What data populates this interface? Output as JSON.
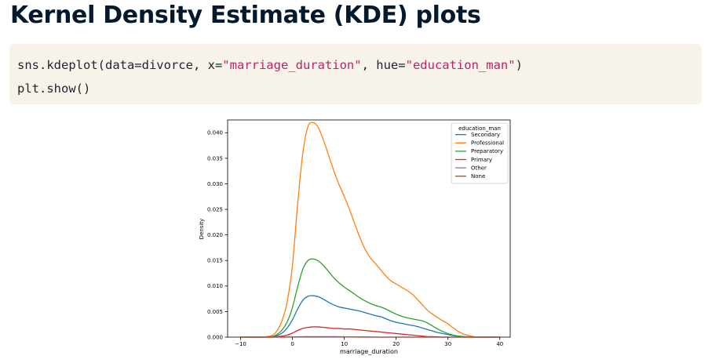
{
  "slide": {
    "title": "Kernel Density Estimate (KDE) plots"
  },
  "code": {
    "line1": {
      "p1": "sns.kdeplot(data=divorce, x=",
      "s1": "\"marriage_duration\"",
      "p2": ", hue=",
      "s2": "\"education_man\"",
      "p3": ")"
    },
    "line2": "plt.show()"
  },
  "colors": {
    "code_bg": "#f7f3eb",
    "string": "#b92762",
    "title": "#05192d"
  },
  "chart_data": {
    "type": "line",
    "xlabel": "marriage_duration",
    "ylabel": "Density",
    "xlim": [
      -12.5,
      42
    ],
    "ylim": [
      0,
      0.0425
    ],
    "xticks": [
      -10,
      0,
      10,
      20,
      30,
      40
    ],
    "yticks": [
      0.0,
      0.005,
      0.01,
      0.015,
      0.02,
      0.025,
      0.03,
      0.035,
      0.04
    ],
    "ytick_labels": [
      "0.000",
      "0.005",
      "0.010",
      "0.015",
      "0.020",
      "0.025",
      "0.030",
      "0.035",
      "0.040"
    ],
    "grid": false,
    "legend_title": "education_man",
    "legend_placement": "upper-right",
    "x": [
      -10,
      -6,
      -4,
      -3,
      -2,
      -1,
      0,
      1,
      2,
      3,
      4,
      5,
      6,
      7,
      8,
      9,
      10,
      11,
      12,
      13,
      14,
      15,
      16,
      17,
      18,
      19,
      20,
      21,
      22,
      23,
      24,
      25,
      26,
      27,
      28,
      29,
      30,
      31,
      32,
      33,
      34,
      35,
      36,
      38,
      40
    ],
    "series": [
      {
        "name": "Secondary",
        "color": "#1f77b4",
        "values": [
          0,
          0,
          0.0001,
          0.0003,
          0.0008,
          0.0018,
          0.0034,
          0.0055,
          0.0072,
          0.008,
          0.0081,
          0.0079,
          0.0074,
          0.0068,
          0.0063,
          0.0059,
          0.0057,
          0.0055,
          0.0053,
          0.0051,
          0.0048,
          0.0045,
          0.0042,
          0.004,
          0.0036,
          0.0032,
          0.0029,
          0.0027,
          0.0025,
          0.0023,
          0.0021,
          0.0018,
          0.0015,
          0.0012,
          0.0009,
          0.0007,
          0.0005,
          0.0003,
          0.0002,
          0.0001,
          5e-05,
          0,
          0,
          0,
          0
        ]
      },
      {
        "name": "Professional",
        "color": "#ff7f0e",
        "values": [
          0,
          0,
          0.0003,
          0.0012,
          0.0032,
          0.007,
          0.014,
          0.026,
          0.036,
          0.0412,
          0.042,
          0.041,
          0.0385,
          0.0355,
          0.0325,
          0.0298,
          0.0275,
          0.025,
          0.0222,
          0.0195,
          0.0172,
          0.0156,
          0.0144,
          0.0132,
          0.012,
          0.011,
          0.0104,
          0.0098,
          0.0092,
          0.0085,
          0.0075,
          0.0064,
          0.0053,
          0.0045,
          0.0038,
          0.0032,
          0.0026,
          0.0018,
          0.0011,
          0.0006,
          0.0003,
          0.0001,
          0,
          0,
          0
        ]
      },
      {
        "name": "Preparatory",
        "color": "#2ca02c",
        "values": [
          0,
          0,
          0.0001,
          0.0005,
          0.0014,
          0.003,
          0.0058,
          0.0098,
          0.0133,
          0.015,
          0.0153,
          0.0149,
          0.014,
          0.0128,
          0.0116,
          0.0106,
          0.0098,
          0.0091,
          0.0084,
          0.0077,
          0.0071,
          0.0066,
          0.0062,
          0.0059,
          0.0055,
          0.005,
          0.0045,
          0.0041,
          0.0038,
          0.0036,
          0.0034,
          0.0032,
          0.0028,
          0.0022,
          0.0016,
          0.0011,
          0.0007,
          0.0004,
          0.0002,
          0.0001,
          5e-05,
          0,
          0,
          0,
          0
        ]
      },
      {
        "name": "Primary",
        "color": "#d62728",
        "values": [
          0,
          0,
          0,
          0.0001,
          0.0002,
          0.0004,
          0.0008,
          0.0013,
          0.0017,
          0.0019,
          0.002,
          0.002,
          0.0019,
          0.0018,
          0.0017,
          0.0017,
          0.0016,
          0.0016,
          0.0015,
          0.0014,
          0.0013,
          0.0012,
          0.0011,
          0.001,
          0.0009,
          0.0008,
          0.0007,
          0.0006,
          0.0005,
          0.0004,
          0.0003,
          0.0002,
          0.0001,
          0.0001,
          5e-05,
          0,
          0,
          0,
          0,
          0,
          0,
          0,
          0,
          0,
          0
        ]
      },
      {
        "name": "Other",
        "color": "#9467bd",
        "values": [
          0,
          0,
          0,
          0,
          0,
          2e-05,
          4e-05,
          6e-05,
          8e-05,
          0.0001,
          0.0001,
          0.0001,
          0.0001,
          0.0001,
          9e-05,
          8e-05,
          7e-05,
          6e-05,
          5e-05,
          4e-05,
          3e-05,
          2e-05,
          1e-05,
          0,
          0,
          0,
          0,
          0,
          0,
          0,
          0,
          0,
          0,
          0,
          0,
          0,
          0,
          0,
          0,
          0,
          0,
          0,
          0,
          0,
          0
        ]
      },
      {
        "name": "None",
        "color": "#8c564b",
        "values": [
          0,
          0,
          0,
          0,
          0,
          1e-05,
          2e-05,
          3e-05,
          4e-05,
          5e-05,
          5e-05,
          5e-05,
          5e-05,
          4e-05,
          4e-05,
          3e-05,
          3e-05,
          2e-05,
          2e-05,
          1e-05,
          1e-05,
          0,
          0,
          0,
          0,
          0,
          0,
          0,
          0,
          0,
          0,
          0,
          0,
          0,
          0,
          0,
          0,
          0,
          0,
          0,
          0,
          0,
          0,
          0,
          0
        ]
      }
    ]
  }
}
